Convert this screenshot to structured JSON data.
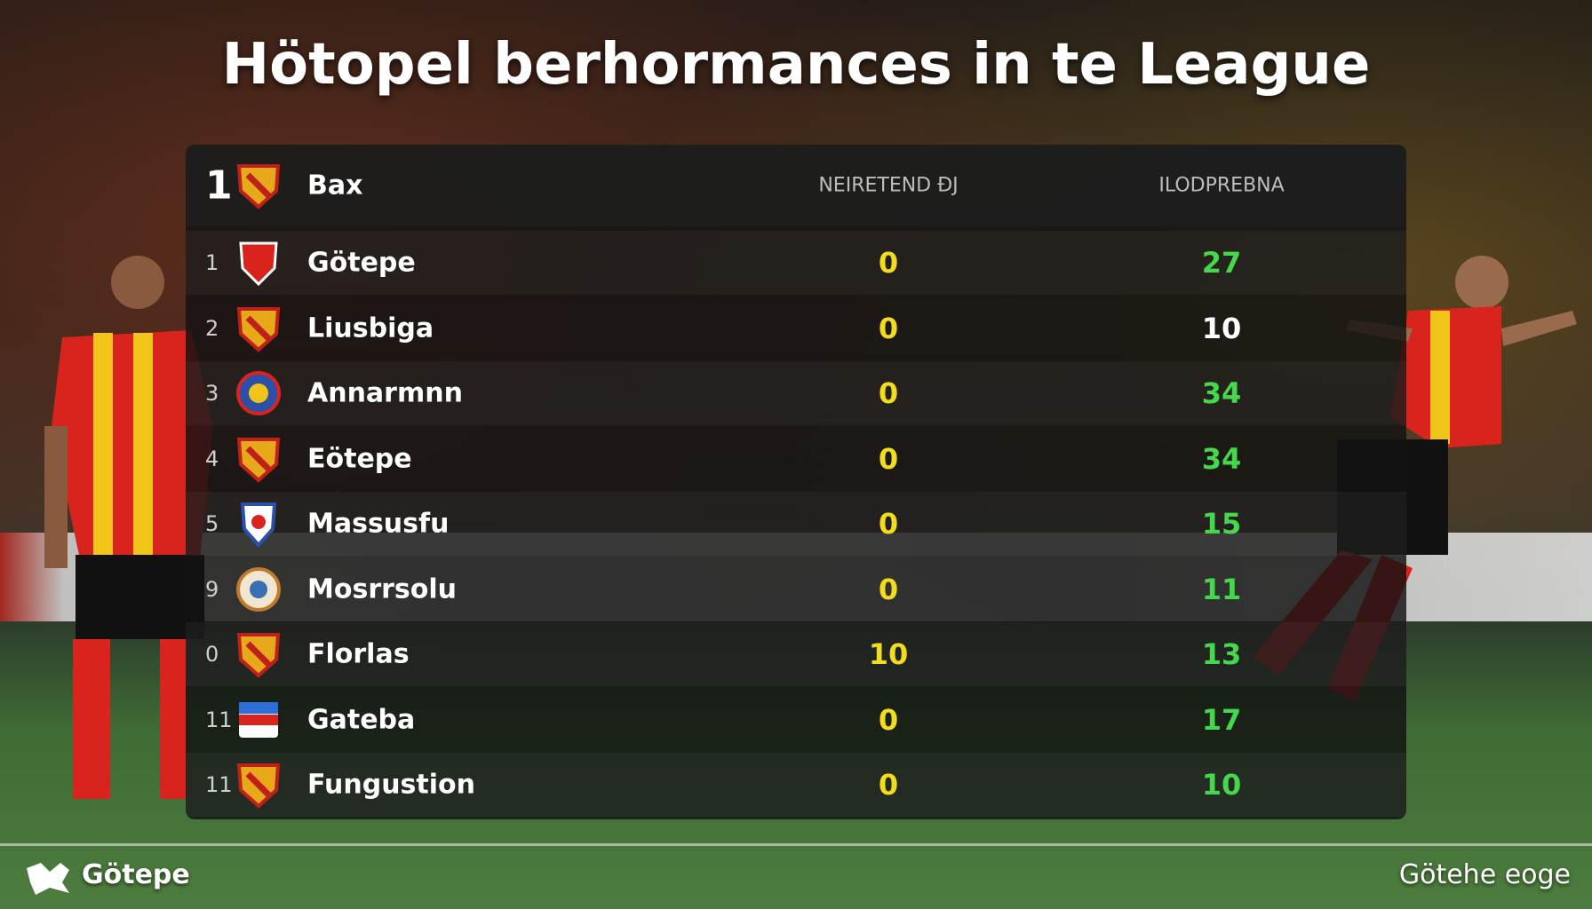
{
  "header": {
    "title": "Hötopel berhormances in te League"
  },
  "table": {
    "header": {
      "rank": "1",
      "team": "Bax",
      "col1": "NEIRETEND ĐJ",
      "col2": "ILODPREBNA"
    },
    "rows": [
      [
        "1",
        "Götepe",
        "0",
        "27"
      ],
      [
        "2",
        "Liusbiga",
        "0",
        "10"
      ],
      [
        "3",
        "Annarmnn",
        "0",
        "34"
      ],
      [
        "4",
        "Eötepe",
        "0",
        "34"
      ],
      [
        "5",
        "Massusfu",
        "0",
        "15"
      ],
      [
        "9",
        "Mosrrsolu",
        "0",
        "11"
      ],
      [
        "0",
        "Florlas",
        "10",
        "13"
      ],
      [
        "11",
        "Gateba",
        "0",
        "17"
      ],
      [
        "11",
        "Fungustion",
        "0",
        "10"
      ]
    ]
  },
  "footer": {
    "left": "Götepe",
    "right": "Götehe eoge"
  }
}
